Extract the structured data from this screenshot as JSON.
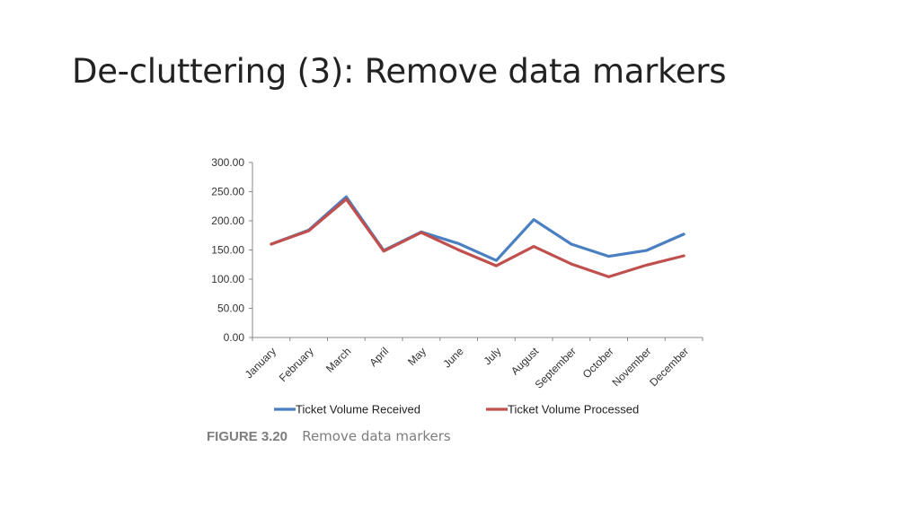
{
  "slide": {
    "title": "De-cluttering (3): Remove data markers"
  },
  "caption": {
    "number": "FIGURE 3.20",
    "text": "Remove data markers"
  },
  "chart_data": {
    "type": "line",
    "categories": [
      "January",
      "February",
      "March",
      "April",
      "May",
      "June",
      "July",
      "August",
      "September",
      "October",
      "November",
      "December"
    ],
    "series": [
      {
        "name": "Ticket Volume Received",
        "color": "#4a7fc1",
        "values": [
          160,
          184,
          241,
          149,
          181,
          161,
          132,
          202,
          160,
          139,
          149,
          177
        ]
      },
      {
        "name": "Ticket Volume Processed",
        "color": "#c0504d",
        "values": [
          160,
          183,
          237,
          148,
          180,
          150,
          123,
          156,
          126,
          104,
          124,
          140
        ]
      }
    ],
    "ylim": [
      0,
      300
    ],
    "yticks": [
      "0.00",
      "50.00",
      "100.00",
      "150.00",
      "200.00",
      "250.00",
      "300.00"
    ],
    "title": "",
    "xlabel": "",
    "ylabel": "",
    "grid": false,
    "legend": "bottom"
  }
}
